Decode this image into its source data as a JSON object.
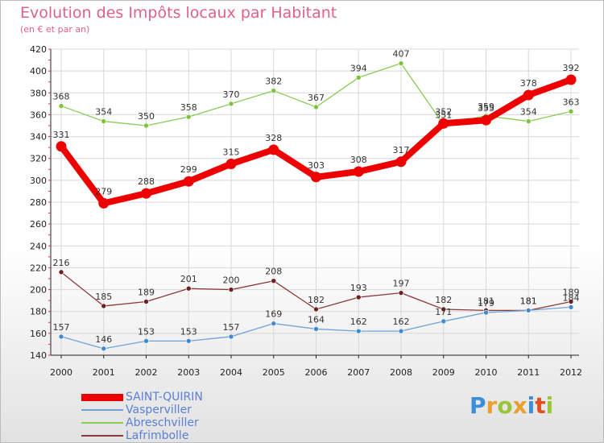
{
  "header": {
    "title": "Evolution des Impôts locaux par Habitant",
    "subtitle": "(en € et par an)"
  },
  "brand": {
    "letters": [
      "P",
      "r",
      "o",
      "x",
      "i",
      "t",
      "i"
    ],
    "colors": [
      "#3a8fd8",
      "#e8a030",
      "#9ac53a",
      "#e8a030",
      "#3a8fd8",
      "#e05020",
      "#9ac53a"
    ]
  },
  "chart_data": {
    "type": "line",
    "title": "Evolution des Impôts locaux par Habitant",
    "ylabel": "(en € et par an)",
    "xlabel": "",
    "ylim": [
      140,
      420
    ],
    "yticks": [
      140,
      160,
      180,
      200,
      220,
      240,
      260,
      280,
      300,
      320,
      340,
      360,
      380,
      400,
      420
    ],
    "categories": [
      "2000",
      "2001",
      "2002",
      "2003",
      "2004",
      "2005",
      "2006",
      "2007",
      "2008",
      "2009",
      "2010",
      "2011",
      "2012"
    ],
    "grid": true,
    "legend_position": "bottom-left",
    "series": [
      {
        "name": "Abreschviller",
        "color": "#88cc55",
        "point_color": "#7cc43a",
        "emphasis": false,
        "values": [
          368,
          354,
          350,
          358,
          370,
          382,
          367,
          394,
          407,
          351,
          359,
          354,
          363
        ],
        "labels": [
          "368",
          "354",
          "350",
          "358",
          "370",
          "382",
          "367",
          "394",
          "407",
          "351",
          "359",
          "354",
          "363"
        ]
      },
      {
        "name": "Lafrimbolle",
        "color": "#8b3a3a",
        "point_color": "#6e1f1f",
        "emphasis": false,
        "values": [
          216,
          185,
          189,
          201,
          200,
          208,
          182,
          193,
          197,
          182,
          181,
          181,
          189
        ],
        "labels": [
          "216",
          "185",
          "189",
          "201",
          "200",
          "208",
          "182",
          "193",
          "197",
          "182",
          "181",
          "181",
          "189"
        ]
      },
      {
        "name": "Vasperviller",
        "color": "#6fa3d8",
        "point_color": "#3f8ad2",
        "emphasis": false,
        "values": [
          157,
          146,
          153,
          153,
          157,
          169,
          164,
          162,
          162,
          171,
          179,
          181,
          184
        ],
        "labels": [
          "157",
          "146",
          "153",
          "153",
          "157",
          "169",
          "164",
          "162",
          "162",
          "171",
          "179",
          "181",
          "184"
        ]
      },
      {
        "name": "SAINT-QUIRIN",
        "color": "#ee0000",
        "point_color": "#ee0000",
        "emphasis": true,
        "values": [
          331,
          279,
          288,
          299,
          315,
          328,
          303,
          308,
          317,
          352,
          355,
          378,
          392
        ],
        "labels": [
          "331",
          "279",
          "288",
          "299",
          "315",
          "328",
          "303",
          "308",
          "317",
          "352",
          "355",
          "378",
          "392"
        ]
      }
    ],
    "legend_order": [
      "SAINT-QUIRIN",
      "Vasperviller",
      "Abreschviller",
      "Lafrimbolle"
    ]
  }
}
